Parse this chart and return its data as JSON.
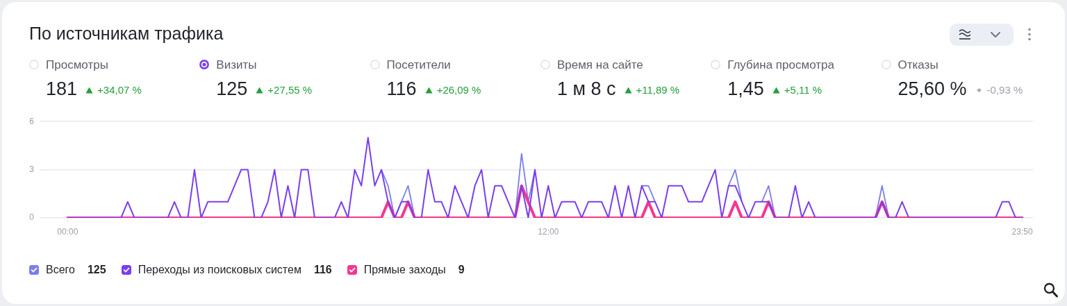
{
  "chart_data": {
    "type": "line",
    "title": "По источникам трафика",
    "annotations": [
      "Просмотры",
      "181",
      "+34,07 %",
      "Визиты",
      "125",
      "+27,55 %",
      "Посетители",
      "116",
      "+26,09 %",
      "Время на сайте",
      "1 м 8 с",
      "+11,89 %",
      "Глубина просмотра",
      "1,45",
      "+5,11 %",
      "Отказы",
      "25,60 %",
      "-0,93 %",
      "125",
      "116",
      "9"
    ],
    "x": [
      0,
      0.167,
      0.333,
      0.5,
      0.667,
      0.833,
      1,
      1.167,
      1.333,
      1.5,
      1.667,
      1.833,
      2,
      2.167,
      2.333,
      2.5,
      2.667,
      2.833,
      3,
      3.167,
      3.333,
      3.5,
      3.667,
      3.833,
      4,
      4.167,
      4.333,
      4.5,
      4.667,
      4.833,
      5,
      5.167,
      5.333,
      5.5,
      5.667,
      5.833,
      6,
      6.167,
      6.333,
      6.5,
      6.667,
      6.833,
      7,
      7.167,
      7.333,
      7.5,
      7.667,
      7.833,
      8,
      8.167,
      8.333,
      8.5,
      8.667,
      8.833,
      9,
      9.167,
      9.333,
      9.5,
      9.667,
      9.833,
      10,
      10.167,
      10.333,
      10.5,
      10.667,
      10.833,
      11,
      11.167,
      11.333,
      11.5,
      11.667,
      11.833,
      12,
      12.167,
      12.333,
      12.5,
      12.667,
      12.833,
      13,
      13.167,
      13.333,
      13.5,
      13.667,
      13.833,
      14,
      14.167,
      14.333,
      14.5,
      14.667,
      14.833,
      15,
      15.167,
      15.333,
      15.5,
      15.667,
      15.833,
      16,
      16.167,
      16.333,
      16.5,
      16.667,
      16.833,
      17,
      17.167,
      17.333,
      17.5,
      17.667,
      17.833,
      18,
      18.167,
      18.333,
      18.5,
      18.667,
      18.833,
      19,
      19.167,
      19.333,
      19.5,
      19.667,
      19.833,
      20,
      20.167,
      20.333,
      20.5,
      20.667,
      20.833,
      21,
      21.167,
      21.333,
      21.5,
      21.667,
      21.833,
      22,
      22.167,
      22.333,
      22.5,
      22.667,
      22.833,
      23,
      23.167,
      23.333,
      23.5,
      23.667,
      23.833
    ],
    "series": [
      {
        "name": "Всего",
        "color": "#7b7eea",
        "values": [
          null,
          null,
          null,
          null,
          null,
          null,
          null,
          null,
          null,
          null,
          null,
          null,
          null,
          null,
          null,
          null,
          null,
          null,
          null,
          null,
          null,
          null,
          null,
          null,
          null,
          null,
          null,
          null,
          null,
          null,
          null,
          null,
          null,
          null,
          null,
          null,
          null,
          null,
          null,
          null,
          null,
          null,
          null,
          null,
          null,
          null,
          null,
          3,
          2,
          0,
          1,
          2,
          0,
          null,
          null,
          null,
          null,
          null,
          null,
          null,
          null,
          null,
          null,
          null,
          null,
          null,
          null,
          0,
          4,
          1,
          3,
          null,
          null,
          null,
          null,
          null,
          null,
          null,
          null,
          null,
          null,
          null,
          null,
          null,
          null,
          null,
          2,
          2,
          1,
          null,
          null,
          null,
          null,
          null,
          null,
          null,
          null,
          null,
          null,
          2,
          3,
          1,
          null,
          null,
          1,
          2,
          0,
          null,
          null,
          null,
          null,
          null,
          null,
          null,
          null,
          null,
          null,
          null,
          null,
          null,
          null,
          0,
          2,
          0,
          null,
          null,
          null,
          null,
          null,
          null,
          null,
          null,
          null,
          null,
          null,
          null,
          null,
          null,
          null,
          null,
          null,
          null,
          null,
          null
        ]
      },
      {
        "name": "Переходы из поисковых систем",
        "color": "#7a3ef0",
        "values": [
          0,
          0,
          0,
          0,
          0,
          0,
          0,
          0,
          0,
          1,
          0,
          0,
          0,
          0,
          0,
          0,
          1,
          0,
          0,
          3,
          0,
          1,
          1,
          1,
          1,
          2,
          3,
          3,
          0,
          0,
          1,
          3,
          0,
          2,
          0,
          3,
          3,
          0,
          0,
          0,
          0,
          1,
          0,
          3,
          2,
          5,
          2,
          3,
          1,
          0,
          1,
          1,
          0,
          0,
          3,
          1,
          1,
          0,
          2,
          1,
          0,
          2,
          3,
          0,
          2,
          2,
          1,
          0,
          2,
          0,
          3,
          0,
          2,
          0,
          1,
          1,
          1,
          0,
          1,
          1,
          1,
          0,
          2,
          0,
          2,
          0,
          2,
          1,
          1,
          0,
          2,
          2,
          2,
          1,
          1,
          1,
          2,
          3,
          0,
          2,
          2,
          1,
          0,
          1,
          1,
          1,
          0,
          0,
          0,
          2,
          0,
          1,
          0,
          0,
          0,
          0,
          0,
          0,
          0,
          0,
          0,
          0,
          1,
          0,
          0,
          1,
          0,
          0,
          0,
          0,
          0,
          0,
          0,
          0,
          0,
          0,
          0,
          0,
          0,
          0,
          1,
          1,
          0,
          0
        ]
      },
      {
        "name": "Прямые заходы",
        "color": "#f7368e",
        "values": [
          0,
          0,
          0,
          0,
          0,
          0,
          0,
          0,
          0,
          0,
          0,
          0,
          0,
          0,
          0,
          0,
          0,
          0,
          0,
          0,
          0,
          0,
          0,
          0,
          0,
          0,
          0,
          0,
          0,
          0,
          0,
          0,
          0,
          0,
          0,
          0,
          0,
          0,
          0,
          0,
          0,
          0,
          0,
          0,
          0,
          0,
          0,
          0,
          1,
          0,
          0,
          1,
          0,
          0,
          0,
          0,
          0,
          0,
          0,
          0,
          0,
          0,
          0,
          0,
          0,
          0,
          0,
          0,
          2,
          1,
          0,
          0,
          0,
          0,
          0,
          0,
          0,
          0,
          0,
          0,
          0,
          0,
          0,
          0,
          0,
          0,
          0,
          1,
          0,
          0,
          0,
          0,
          0,
          0,
          0,
          0,
          0,
          0,
          0,
          0,
          1,
          0,
          0,
          0,
          0,
          1,
          0,
          0,
          0,
          0,
          0,
          0,
          0,
          0,
          0,
          0,
          0,
          0,
          0,
          0,
          0,
          0,
          1,
          0,
          0,
          0,
          0,
          0,
          0,
          0,
          0,
          0,
          0,
          0,
          0,
          0,
          0,
          0,
          0,
          0,
          0,
          0,
          0,
          0
        ]
      }
    ],
    "xlim": [
      -0.7,
      24.1
    ],
    "xticks": [
      {
        "value": 0,
        "label": "00:00"
      },
      {
        "value": 12,
        "label": "12:00"
      },
      {
        "value": 23.833,
        "label": "23:50"
      }
    ],
    "ylim": [
      0,
      6
    ],
    "yticks": [
      0,
      3,
      6
    ],
    "grid": "y",
    "legend": "bottom"
  }
}
